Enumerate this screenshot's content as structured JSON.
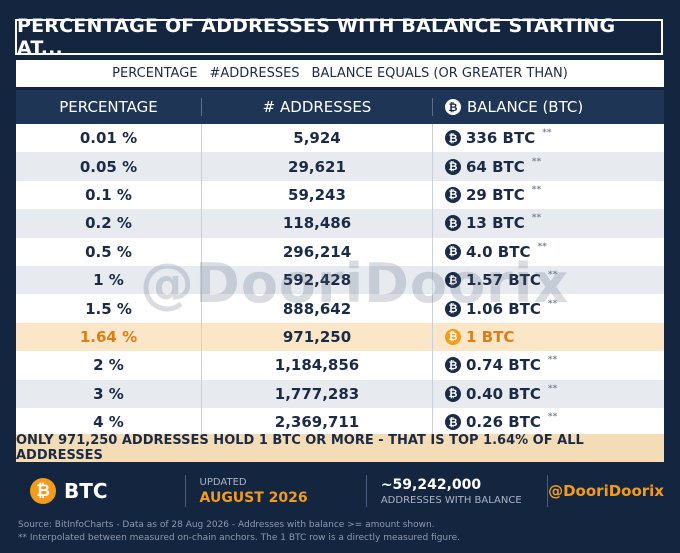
{
  "title": "PERCENTAGE OF ADDRESSES WITH BALANCE STARTING AT...",
  "subheader": {
    "part1": "PERCENTAGE",
    "part2": "#ADDRESSES",
    "part3": "BALANCE EQUALS (OR GREATER THAN)"
  },
  "columns": {
    "percentage": "PERCENTAGE",
    "addresses": "# ADDRESSES",
    "balance": "BALANCE (BTC)"
  },
  "coin_symbol": "₿",
  "rows": [
    {
      "pct": "0.01 %",
      "addr": "5,924",
      "bal": "336 BTC",
      "mark": "**"
    },
    {
      "pct": "0.05 %",
      "addr": "29,621",
      "bal": "64 BTC",
      "mark": "**"
    },
    {
      "pct": "0.1 %",
      "addr": "59,243",
      "bal": "29 BTC",
      "mark": "**"
    },
    {
      "pct": "0.2 %",
      "addr": "118,486",
      "bal": "13 BTC",
      "mark": "**"
    },
    {
      "pct": "0.5 %",
      "addr": "296,214",
      "bal": "4.0 BTC",
      "mark": "**"
    },
    {
      "pct": "1 %",
      "addr": "592,428",
      "bal": "1.57 BTC",
      "mark": "**"
    },
    {
      "pct": "1.5 %",
      "addr": "888,642",
      "bal": "1.06 BTC",
      "mark": "**"
    },
    {
      "pct": "1.64 %",
      "addr": "971,250",
      "bal": "1 BTC",
      "mark": ""
    },
    {
      "pct": "2 %",
      "addr": "1,184,856",
      "bal": "0.74 BTC",
      "mark": "**"
    },
    {
      "pct": "3 %",
      "addr": "1,777,283",
      "bal": "0.40 BTC",
      "mark": "**"
    },
    {
      "pct": "4 %",
      "addr": "2,369,711",
      "bal": "0.26 BTC",
      "mark": "**"
    }
  ],
  "highlight_row_index": 7,
  "watermark": "@DooriDoorix",
  "banner": "ONLY 971,250 ADDRESSES HOLD 1 BTC OR MORE  -  THAT IS TOP 1.64% OF ALL ADDRESSES",
  "footer": {
    "btc_label": "BTC",
    "updated_label": "UPDATED",
    "updated_value": "AUGUST 2026",
    "addresses_value": "~59,242,000",
    "addresses_label": "ADDRESSES WITH BALANCE",
    "handle": "@DooriDoorix"
  },
  "source_line1": "Source: BitInfoCharts - Data as of 28 Aug 2026 - Addresses with balance >= amount shown.",
  "source_line2": "**  Interpolated between measured on-chain anchors. The 1 BTC row is a directly measured figure.",
  "colors": {
    "background": "#14253f",
    "accent": "#f39c1c",
    "highlight_row": "#fbe6c8",
    "banner": "#f3dcb6"
  }
}
